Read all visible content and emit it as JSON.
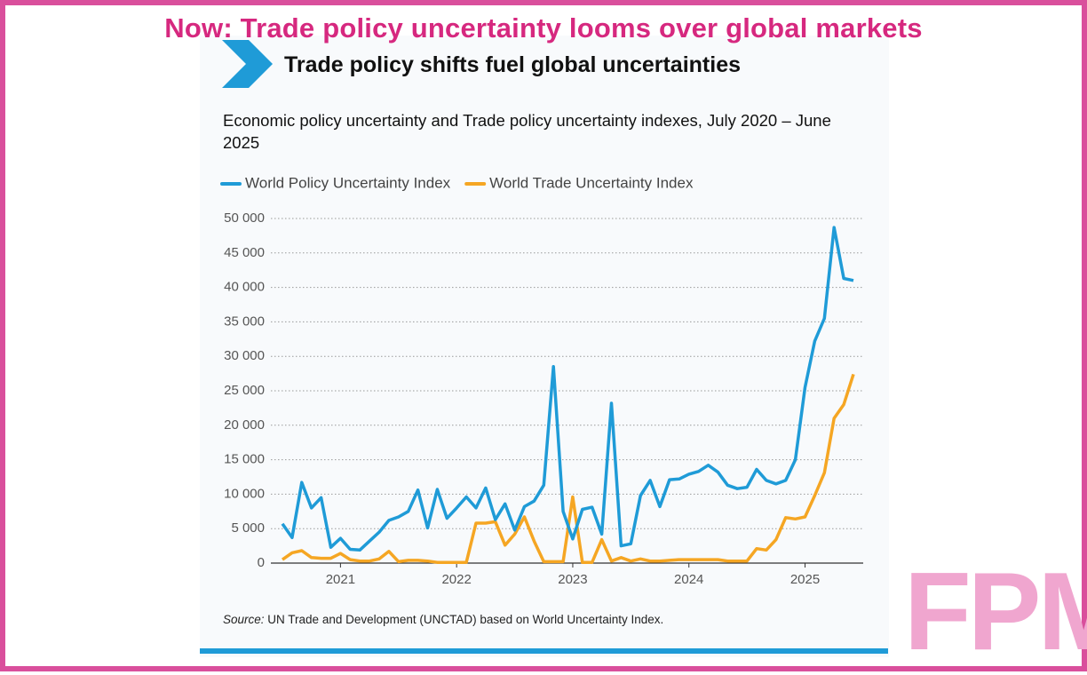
{
  "banner": "Now: Trade policy uncertainty looms over global markets",
  "header": "Trade policy shifts fuel global uncertainties",
  "watermark": "FPM",
  "chart_data": {
    "type": "line",
    "title": "Economic policy uncertainty and Trade policy uncertainty indexes, July 2020 – June 2025",
    "source_label": "Source:",
    "source": "UN Trade and Development (UNCTAD) based on World Uncertainty Index.",
    "categories": [
      null,
      null,
      null,
      null,
      null,
      null,
      "2021",
      null,
      null,
      null,
      null,
      null,
      null,
      null,
      null,
      null,
      null,
      null,
      "2022",
      null,
      null,
      null,
      null,
      null,
      null,
      null,
      null,
      null,
      null,
      null,
      "2023",
      null,
      null,
      null,
      null,
      null,
      null,
      null,
      null,
      null,
      null,
      null,
      "2024",
      null,
      null,
      null,
      null,
      null,
      null,
      null,
      null,
      null,
      null,
      null,
      "2025",
      null,
      null,
      null,
      null,
      null
    ],
    "series": [
      {
        "name": "World Policy Uncertainty Index",
        "color": "#1f9bd7",
        "values": [
          5700,
          3700,
          11700,
          8000,
          9500,
          2300,
          3600,
          2000,
          1900,
          3200,
          4500,
          6200,
          6700,
          7500,
          10600,
          5100,
          10700,
          6500,
          8000,
          9600,
          8000,
          10900,
          6300,
          8600,
          4800,
          8200,
          9000,
          11300,
          28500,
          7500,
          3500,
          7800,
          8100,
          4200,
          23200,
          2500,
          2800,
          9800,
          12000,
          8200,
          12100,
          12200,
          12900,
          13300,
          14200,
          13200,
          11300,
          10800,
          11000,
          13600,
          12000,
          11500,
          12000,
          15000,
          25500,
          32200,
          35500,
          48700,
          41300,
          41000
        ]
      },
      {
        "name": "World Trade Uncertainty Index",
        "color": "#f5a623",
        "values": [
          500,
          1500,
          1800,
          800,
          700,
          700,
          1400,
          500,
          300,
          300,
          600,
          1700,
          200,
          400,
          400,
          300,
          100,
          100,
          100,
          100,
          5800,
          5800,
          6000,
          2600,
          4200,
          6700,
          3200,
          200,
          200,
          200,
          9600,
          100,
          100,
          3400,
          300,
          800,
          300,
          600,
          300,
          300,
          400,
          500,
          500,
          500,
          500,
          500,
          300,
          300,
          300,
          2100,
          1900,
          3400,
          6600,
          6400,
          6700,
          9800,
          13100,
          21000,
          23000,
          27400
        ]
      }
    ],
    "ylim": [
      0,
      50000
    ],
    "yticks": [
      0,
      {
        "value": 5000,
        "label": "5 000"
      },
      {
        "value": 10000,
        "label": "10 000"
      },
      {
        "value": 15000,
        "label": "15 000"
      },
      {
        "value": 20000,
        "label": "20 000"
      },
      {
        "value": 25000,
        "label": "25 000"
      },
      {
        "value": 30000,
        "label": "30 000"
      },
      {
        "value": 35000,
        "label": "35 000"
      },
      {
        "value": 40000,
        "label": "40 000"
      },
      {
        "value": 45000,
        "label": "45 000"
      },
      {
        "value": 50000,
        "label": "50 000"
      }
    ],
    "grid": true
  }
}
